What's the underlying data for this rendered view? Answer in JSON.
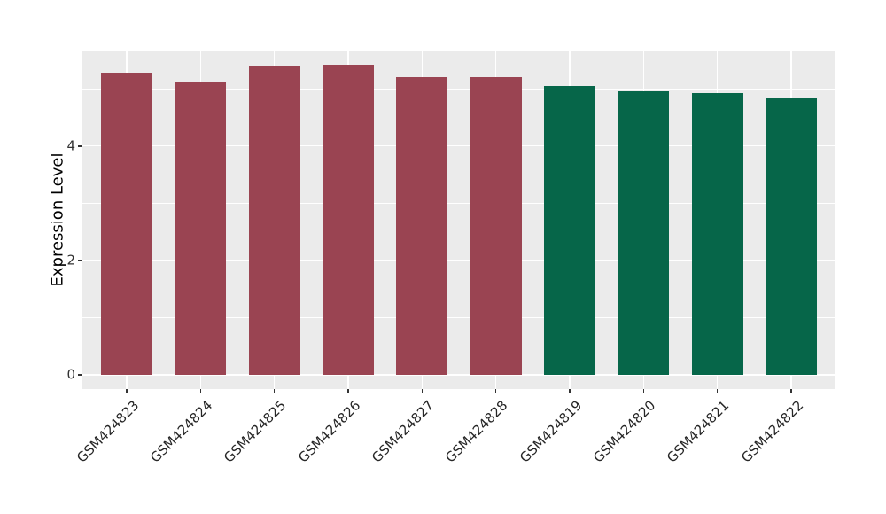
{
  "colors": {
    "figure_background": "#FFFFFF",
    "panel_background": "#EBEBEB",
    "grid": "#FFFFFF",
    "bar_red": "#9A4452",
    "bar_green": "#066649",
    "axis_text": "#333333",
    "x_axis_text": "#262626",
    "axis_title": "#000000",
    "tick_mark": "#333333"
  },
  "chart_data": {
    "type": "bar",
    "title": "",
    "xlabel": "",
    "ylabel": "Expression Level",
    "categories": [
      "GSM424823",
      "GSM424824",
      "GSM424825",
      "GSM424826",
      "GSM424827",
      "GSM424828",
      "GSM424819",
      "GSM424820",
      "GSM424821",
      "GSM424822"
    ],
    "values": [
      5.28,
      5.12,
      5.4,
      5.42,
      5.2,
      5.2,
      5.05,
      4.95,
      4.92,
      4.84
    ],
    "bar_colors": [
      "#9A4452",
      "#9A4452",
      "#9A4452",
      "#9A4452",
      "#9A4452",
      "#9A4452",
      "#066649",
      "#066649",
      "#066649",
      "#066649"
    ],
    "yticks": [
      0,
      2,
      4
    ],
    "ytick_labels": [
      "0",
      "2",
      "4"
    ],
    "yticks_minor": [
      1,
      3,
      5
    ],
    "ylim": [
      -0.25,
      5.67
    ],
    "bar_width_fraction": 0.7,
    "x_tick_rotation_deg": 45,
    "grid": true,
    "legend": false
  }
}
